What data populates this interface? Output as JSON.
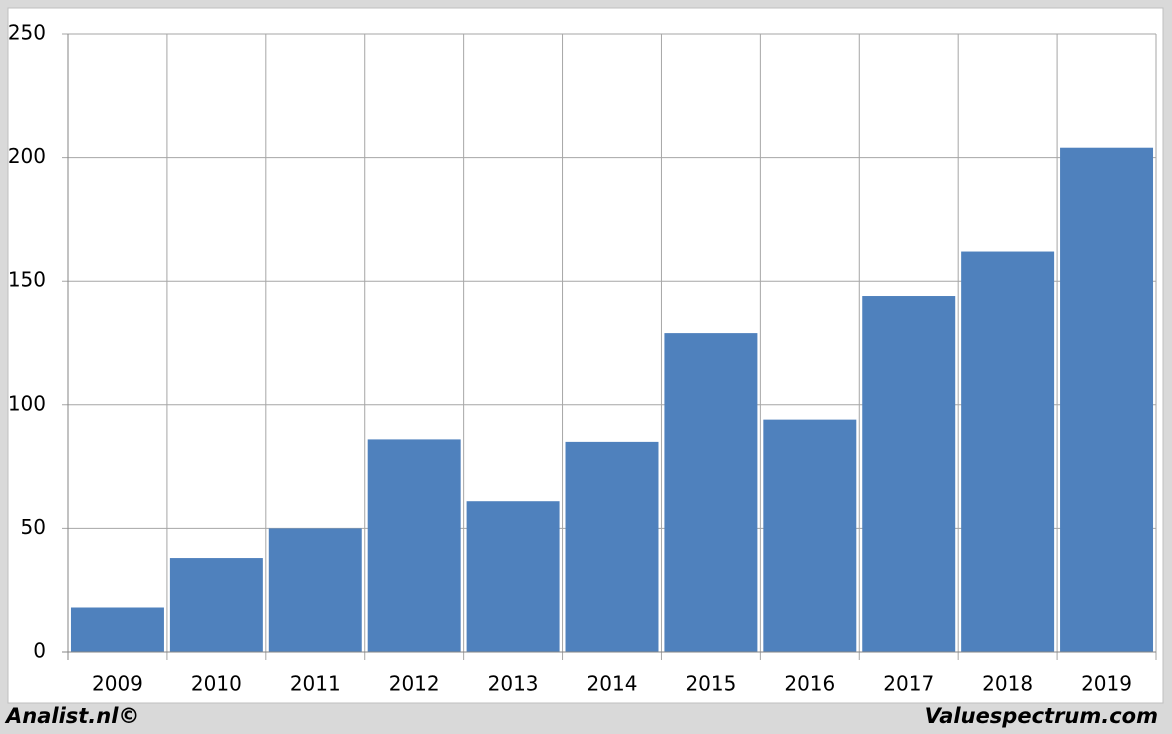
{
  "chart_data": {
    "type": "bar",
    "categories": [
      "2009",
      "2010",
      "2011",
      "2012",
      "2013",
      "2014",
      "2015",
      "2016",
      "2017",
      "2018",
      "2019"
    ],
    "values": [
      18,
      38,
      50,
      86,
      61,
      85,
      129,
      94,
      144,
      162,
      204
    ],
    "color": "#4f81bd",
    "ylim": [
      0,
      250
    ],
    "yticks": [
      0,
      50,
      100,
      150,
      200,
      250
    ],
    "grid": true,
    "credit_left": "Analist.nl©",
    "credit_right": "Valuespectrum.com"
  }
}
